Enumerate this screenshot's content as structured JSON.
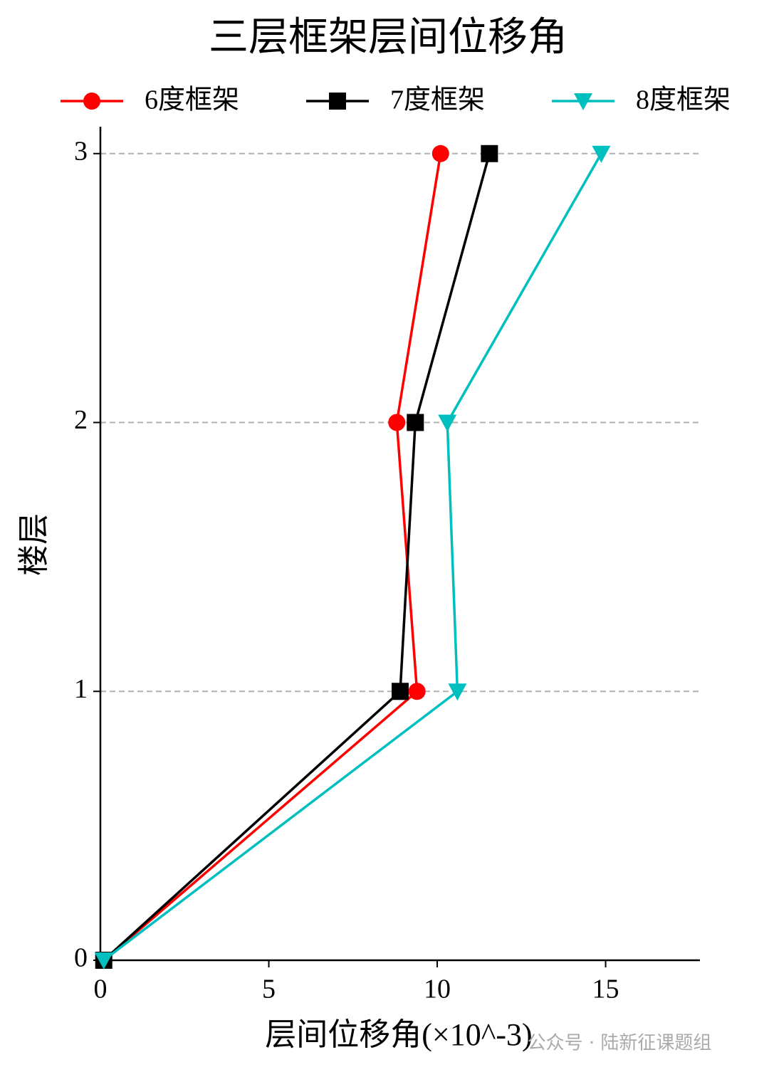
{
  "chart_data": {
    "type": "line",
    "orientation": "horizontal",
    "title": "三层框架层间位移角",
    "xlabel": "层间位移角(×10^-3)",
    "ylabel": "楼层",
    "y": [
      0,
      1,
      2,
      3
    ],
    "series": [
      {
        "name": "6度框架",
        "color": "#ff0000",
        "marker": "circle",
        "values": [
          0.1,
          9.4,
          8.8,
          10.1
        ]
      },
      {
        "name": "7度框架",
        "color": "#000000",
        "marker": "square",
        "values": [
          0.1,
          8.9,
          9.35,
          11.55
        ]
      },
      {
        "name": "8度框架",
        "color": "#00bfbf",
        "marker": "triangle-down",
        "values": [
          0.1,
          10.6,
          10.3,
          14.87
        ]
      }
    ],
    "xlim": [
      0,
      17.8
    ],
    "xticks": [
      0,
      5,
      10,
      15
    ],
    "ylim": [
      0,
      3.1
    ],
    "yticks": [
      0,
      1,
      2,
      3
    ],
    "grid": true,
    "legend": "top",
    "watermark": "公众号 · 陆新征课题组"
  }
}
